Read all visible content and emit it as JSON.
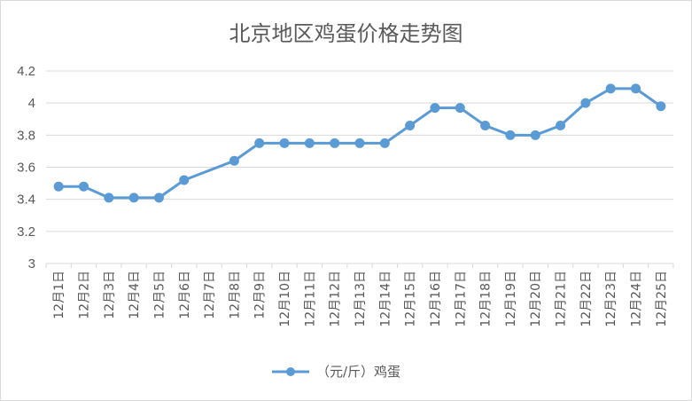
{
  "chart_data": {
    "type": "line",
    "title": "北京地区鸡蛋价格走势图",
    "categories": [
      "12月1日",
      "12月2日",
      "12月3日",
      "12月4日",
      "12月5日",
      "12月6日",
      "12月7日",
      "12月8日",
      "12月9日",
      "12月10日",
      "12月11日",
      "12月12日",
      "12月13日",
      "12月14日",
      "12月15日",
      "12月16日",
      "12月17日",
      "12月18日",
      "12月19日",
      "12月20日",
      "12月21日",
      "12月22日",
      "12月23日",
      "12月24日",
      "12月25日"
    ],
    "series": [
      {
        "name": "（元/斤）鸡蛋",
        "color": "#5b9bd5",
        "values": [
          3.48,
          3.48,
          3.41,
          3.41,
          3.41,
          3.52,
          null,
          3.64,
          3.75,
          3.75,
          3.75,
          3.75,
          3.75,
          3.75,
          3.86,
          3.97,
          3.97,
          3.86,
          3.8,
          3.8,
          3.86,
          4.0,
          4.09,
          4.09,
          3.98
        ]
      }
    ],
    "ylim": [
      3,
      4.2
    ],
    "yticks": [
      "3",
      "3.2",
      "3.4",
      "3.6",
      "3.8",
      "4",
      "4.2"
    ],
    "grid": true,
    "legend_position": "bottom",
    "xlabel": "",
    "ylabel": ""
  }
}
